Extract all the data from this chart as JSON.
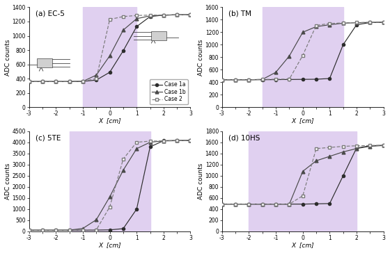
{
  "panels": [
    {
      "label": "(a) EC-5",
      "ylim": [
        0,
        1400
      ],
      "yticks": [
        0,
        200,
        400,
        600,
        800,
        1000,
        1200,
        1400
      ],
      "bg_xlim": [
        -1,
        1
      ],
      "case1a": {
        "x": [
          -3,
          -2.5,
          -2,
          -1.5,
          -1,
          -0.5,
          0,
          0.5,
          1,
          1.5,
          2,
          2.5,
          3
        ],
        "y": [
          360,
          360,
          360,
          360,
          362,
          380,
          490,
          790,
          1130,
          1270,
          1290,
          1295,
          1295
        ]
      },
      "case1b": {
        "x": [
          -3,
          -2.5,
          -2,
          -1.5,
          -1,
          -0.5,
          0,
          0.5,
          1,
          1.5,
          2,
          2.5,
          3
        ],
        "y": [
          360,
          360,
          360,
          360,
          362,
          450,
          720,
          1080,
          1240,
          1280,
          1290,
          1295,
          1295
        ]
      },
      "case2": {
        "x": [
          -3,
          -2.5,
          -2,
          -1.5,
          -1,
          -0.5,
          0,
          0.5,
          1,
          1.5,
          2,
          2.5,
          3
        ],
        "y": [
          360,
          360,
          360,
          360,
          365,
          400,
          1230,
          1270,
          1285,
          1290,
          1290,
          1293,
          1295
        ]
      }
    },
    {
      "label": "(b) TM",
      "ylim": [
        0,
        1600
      ],
      "yticks": [
        0,
        200,
        400,
        600,
        800,
        1000,
        1200,
        1400,
        1600
      ],
      "bg_xlim": [
        -1.5,
        1.5
      ],
      "case1a": {
        "x": [
          -3,
          -2.5,
          -2,
          -1.5,
          -1,
          -0.5,
          0,
          0.5,
          1,
          1.5,
          2,
          2.5,
          3
        ],
        "y": [
          440,
          440,
          440,
          440,
          442,
          444,
          446,
          448,
          460,
          1000,
          1320,
          1355,
          1360
        ]
      },
      "case1b": {
        "x": [
          -3,
          -2.5,
          -2,
          -1.5,
          -1,
          -0.5,
          0,
          0.5,
          1,
          1.5,
          2,
          2.5,
          3
        ],
        "y": [
          440,
          440,
          440,
          445,
          560,
          820,
          1200,
          1290,
          1320,
          1345,
          1352,
          1358,
          1360
        ]
      },
      "case2": {
        "x": [
          -3,
          -2.5,
          -2,
          -1.5,
          -1,
          -0.5,
          0,
          0.5,
          1,
          1.5,
          2,
          2.5,
          3
        ],
        "y": [
          440,
          440,
          440,
          445,
          448,
          450,
          830,
          1310,
          1340,
          1350,
          1355,
          1358,
          1360
        ]
      }
    },
    {
      "label": "(c) 5TE",
      "ylim": [
        0,
        4500
      ],
      "yticks": [
        0,
        500,
        1000,
        1500,
        2000,
        2500,
        3000,
        3500,
        4000,
        4500
      ],
      "bg_xlim": [
        -1.5,
        1.5
      ],
      "case1a": {
        "x": [
          -3,
          -2.5,
          -2,
          -1.5,
          -1,
          -0.5,
          0,
          0.5,
          1,
          1.5,
          2,
          2.5,
          3
        ],
        "y": [
          50,
          50,
          50,
          50,
          50,
          55,
          65,
          120,
          1000,
          3800,
          4080,
          4090,
          4090
        ]
      },
      "case1b": {
        "x": [
          -3,
          -2.5,
          -2,
          -1.5,
          -1,
          -0.5,
          0,
          0.5,
          1,
          1.5,
          2,
          2.5,
          3
        ],
        "y": [
          50,
          50,
          50,
          55,
          130,
          520,
          1550,
          2750,
          3720,
          4010,
          4070,
          4080,
          4090
        ]
      },
      "case2": {
        "x": [
          -3,
          -2.5,
          -2,
          -1.5,
          -1,
          -0.5,
          0,
          0.5,
          1,
          1.5,
          2,
          2.5,
          3
        ],
        "y": [
          50,
          50,
          50,
          50,
          55,
          65,
          1100,
          3250,
          4010,
          4060,
          4070,
          4080,
          4090
        ]
      }
    },
    {
      "label": "(d) 10HS",
      "ylim": [
        0,
        1800
      ],
      "yticks": [
        0,
        200,
        400,
        600,
        800,
        1000,
        1200,
        1400,
        1600,
        1800
      ],
      "bg_xlim": [
        -2,
        2
      ],
      "case1a": {
        "x": [
          -3,
          -2.5,
          -2,
          -1.5,
          -1,
          -0.5,
          0,
          0.5,
          1,
          1.5,
          2,
          2.5,
          3
        ],
        "y": [
          490,
          490,
          490,
          490,
          490,
          490,
          490,
          495,
          500,
          1000,
          1500,
          1540,
          1550
        ]
      },
      "case1b": {
        "x": [
          -3,
          -2.5,
          -2,
          -1.5,
          -1,
          -0.5,
          0,
          0.5,
          1,
          1.5,
          2,
          2.5,
          3
        ],
        "y": [
          490,
          490,
          490,
          490,
          490,
          490,
          1080,
          1270,
          1350,
          1430,
          1490,
          1530,
          1545
        ]
      },
      "case2": {
        "x": [
          -3,
          -2.5,
          -2,
          -1.5,
          -1,
          -0.5,
          0,
          0.5,
          1,
          1.5,
          2,
          2.5,
          3
        ],
        "y": [
          490,
          490,
          490,
          490,
          490,
          490,
          640,
          1490,
          1510,
          1530,
          1540,
          1545,
          1548
        ]
      }
    }
  ],
  "xlim": [
    -3,
    3
  ],
  "xticks": [
    -3,
    -2.5,
    -2,
    -1.5,
    -1,
    -0.5,
    0,
    0.5,
    1,
    1.5,
    2,
    2.5,
    3
  ],
  "xtick_labels": [
    "-3",
    "",
    "-2",
    "",
    "-1",
    "",
    "0",
    "",
    "1",
    "",
    "2",
    "",
    "3"
  ],
  "xlabel": "X  [cm]",
  "ylabel": "ADC counts",
  "bg_color": "#e0d0f0",
  "legend_labels": [
    "Case 1a",
    "Case 1b",
    "Case 2"
  ]
}
